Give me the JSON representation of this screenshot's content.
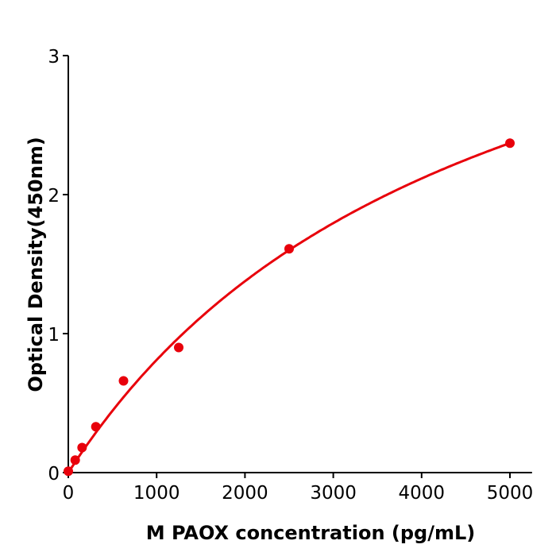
{
  "chart_data": {
    "type": "scatter",
    "title": "",
    "xlabel": "M  PAOX concentration (pg/mL)",
    "ylabel": "Optical Density(450nm)",
    "xlim": [
      0,
      5250
    ],
    "ylim": [
      0,
      3
    ],
    "xticks": [
      "0",
      "1000",
      "2000",
      "3000",
      "4000",
      "5000"
    ],
    "yticks": [
      "0",
      "1",
      "2",
      "3"
    ],
    "grid": false,
    "color": "#e8000b",
    "fit_line": true,
    "points": [
      {
        "x": 0,
        "y": 0.01
      },
      {
        "x": 78,
        "y": 0.09
      },
      {
        "x": 156,
        "y": 0.18
      },
      {
        "x": 312,
        "y": 0.33
      },
      {
        "x": 625,
        "y": 0.66
      },
      {
        "x": 1250,
        "y": 0.9
      },
      {
        "x": 2500,
        "y": 1.61
      },
      {
        "x": 5000,
        "y": 2.37
      }
    ]
  }
}
